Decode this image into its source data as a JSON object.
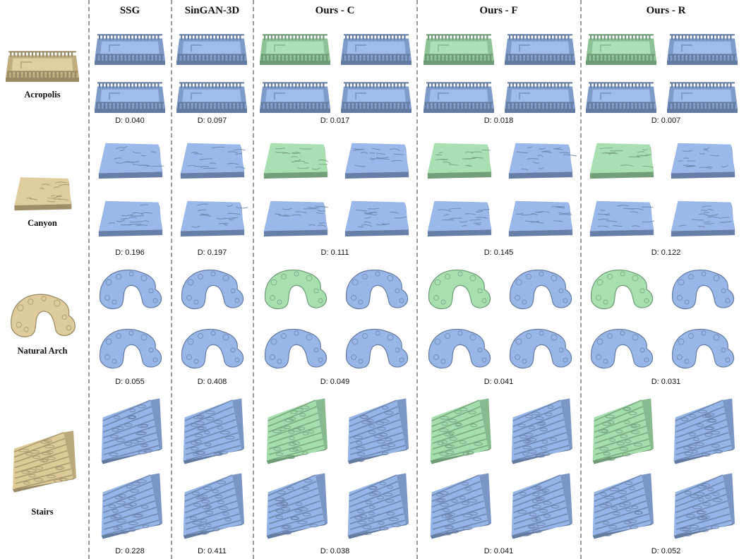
{
  "columns": [
    {
      "label": "SSG"
    },
    {
      "label": "SinGAN-3D"
    },
    {
      "label": "Ours - C"
    },
    {
      "label": "Ours - F"
    },
    {
      "label": "Ours - R"
    }
  ],
  "rows": [
    {
      "name": "Acropolis",
      "shape": "acropolis",
      "distances": [
        "D: 0.040",
        "D: 0.097",
        "D: 0.017",
        "D: 0.018",
        "D: 0.007"
      ]
    },
    {
      "name": "Canyon",
      "shape": "canyon",
      "distances": [
        "D: 0.196",
        "D: 0.197",
        "D: 0.111",
        "D: 0.145",
        "D: 0.122"
      ]
    },
    {
      "name": "Natural Arch",
      "shape": "arch",
      "distances": [
        "D: 0.055",
        "D: 0.408",
        "D: 0.049",
        "D: 0.041",
        "D: 0.031"
      ]
    },
    {
      "name": "Stairs",
      "shape": "stairs",
      "distances": [
        "D: 0.228",
        "D: 0.411",
        "D: 0.038",
        "D: 0.041",
        "D: 0.052"
      ]
    }
  ],
  "colors": {
    "exemplar": "#dcc792",
    "sample": "#8fb0e6",
    "highlight": "#9fdca8",
    "divider": "#9a9a9a"
  }
}
